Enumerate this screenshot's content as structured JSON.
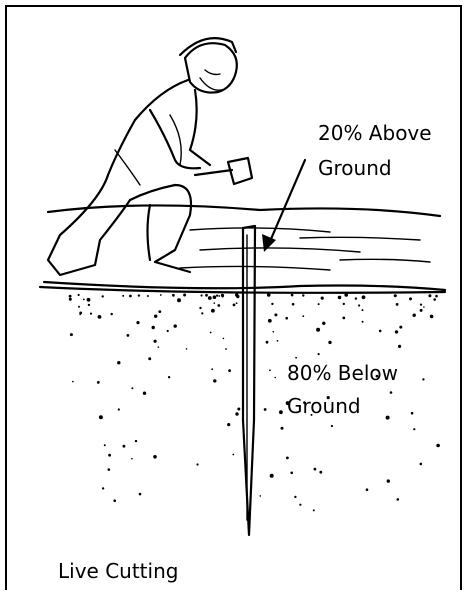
{
  "labels": [
    {
      "lines": [
        "20% Above",
        "Ground"
      ]
    },
    {
      "lines": [
        "80% Below",
        "Ground"
      ]
    },
    {
      "lines": [
        "Live Cutting"
      ]
    }
  ]
}
